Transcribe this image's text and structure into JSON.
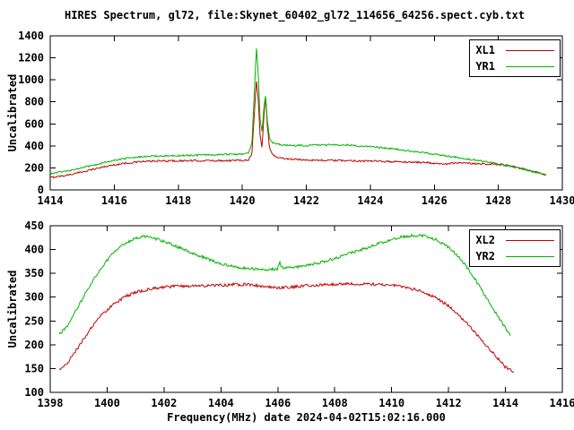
{
  "title": "HIRES Spectrum, gl72, file:Skynet_60402_gl72_114656_64256.spect.cyb.txt",
  "background_color": "#ffffff",
  "axis_color": "#000000",
  "chart_data": [
    {
      "type": "line",
      "title": "",
      "ylabel": "Uncalibrated",
      "xlim": [
        1414,
        1430
      ],
      "ylim": [
        0,
        1400
      ],
      "xticks": [
        1414,
        1416,
        1418,
        1420,
        1422,
        1424,
        1426,
        1428,
        1430
      ],
      "yticks": [
        0,
        200,
        400,
        600,
        800,
        1000,
        1200,
        1400
      ],
      "grid": false,
      "legend_position": "top-right",
      "series": [
        {
          "name": "XL1",
          "color": "#c00000",
          "noise": 8,
          "points": [
            [
              1414.0,
              112
            ],
            [
              1414.4,
              128
            ],
            [
              1414.8,
              150
            ],
            [
              1415.2,
              178
            ],
            [
              1415.6,
              205
            ],
            [
              1416.0,
              228
            ],
            [
              1416.4,
              245
            ],
            [
              1416.8,
              256
            ],
            [
              1417.2,
              261
            ],
            [
              1417.6,
              263
            ],
            [
              1418.0,
              264
            ],
            [
              1418.5,
              265
            ],
            [
              1419.0,
              266
            ],
            [
              1419.5,
              267
            ],
            [
              1420.0,
              269
            ],
            [
              1420.2,
              274
            ],
            [
              1420.3,
              330
            ],
            [
              1420.38,
              700
            ],
            [
              1420.44,
              1000
            ],
            [
              1420.5,
              820
            ],
            [
              1420.56,
              480
            ],
            [
              1420.62,
              380
            ],
            [
              1420.68,
              700
            ],
            [
              1420.73,
              850
            ],
            [
              1420.78,
              600
            ],
            [
              1420.85,
              380
            ],
            [
              1420.95,
              320
            ],
            [
              1421.1,
              295
            ],
            [
              1421.4,
              282
            ],
            [
              1421.8,
              275
            ],
            [
              1422.3,
              270
            ],
            [
              1422.8,
              268
            ],
            [
              1423.3,
              266
            ],
            [
              1423.8,
              263
            ],
            [
              1424.3,
              260
            ],
            [
              1424.8,
              256
            ],
            [
              1425.3,
              252
            ],
            [
              1425.8,
              249
            ],
            [
              1426.1,
              240
            ],
            [
              1426.3,
              232
            ],
            [
              1426.5,
              242
            ],
            [
              1426.9,
              243
            ],
            [
              1427.3,
              240
            ],
            [
              1427.7,
              236
            ],
            [
              1428.1,
              228
            ],
            [
              1428.5,
              210
            ],
            [
              1428.9,
              182
            ],
            [
              1429.2,
              158
            ],
            [
              1429.5,
              138
            ]
          ]
        },
        {
          "name": "YR1",
          "color": "#00b400",
          "noise": 8,
          "points": [
            [
              1414.0,
              148
            ],
            [
              1414.4,
              165
            ],
            [
              1414.8,
              188
            ],
            [
              1415.2,
              215
            ],
            [
              1415.6,
              243
            ],
            [
              1416.0,
              268
            ],
            [
              1416.4,
              288
            ],
            [
              1416.8,
              300
            ],
            [
              1417.2,
              306
            ],
            [
              1417.6,
              309
            ],
            [
              1418.0,
              312
            ],
            [
              1418.5,
              315
            ],
            [
              1419.0,
              318
            ],
            [
              1419.5,
              322
            ],
            [
              1420.0,
              328
            ],
            [
              1420.2,
              338
            ],
            [
              1420.3,
              420
            ],
            [
              1420.38,
              900
            ],
            [
              1420.44,
              1300
            ],
            [
              1420.5,
              1050
            ],
            [
              1420.56,
              620
            ],
            [
              1420.62,
              520
            ],
            [
              1420.68,
              760
            ],
            [
              1420.73,
              865
            ],
            [
              1420.78,
              640
            ],
            [
              1420.85,
              470
            ],
            [
              1420.95,
              430
            ],
            [
              1421.1,
              415
            ],
            [
              1421.4,
              405
            ],
            [
              1421.8,
              404
            ],
            [
              1422.3,
              407
            ],
            [
              1422.8,
              410
            ],
            [
              1423.3,
              408
            ],
            [
              1423.8,
              398
            ],
            [
              1424.3,
              385
            ],
            [
              1424.8,
              370
            ],
            [
              1425.3,
              352
            ],
            [
              1425.8,
              333
            ],
            [
              1426.3,
              312
            ],
            [
              1426.8,
              292
            ],
            [
              1427.3,
              270
            ],
            [
              1427.7,
              252
            ],
            [
              1428.1,
              232
            ],
            [
              1428.5,
              208
            ],
            [
              1428.9,
              180
            ],
            [
              1429.2,
              158
            ],
            [
              1429.5,
              135
            ]
          ]
        }
      ]
    },
    {
      "type": "line",
      "title": "",
      "ylabel": "Uncalibrated",
      "xlabel": "Frequency(MHz) date 2024-04-02T15:02:16.000",
      "xlim": [
        1398,
        1416
      ],
      "ylim": [
        100,
        450
      ],
      "xticks": [
        1398,
        1400,
        1402,
        1404,
        1406,
        1408,
        1410,
        1412,
        1414,
        1416
      ],
      "yticks": [
        100,
        150,
        200,
        250,
        300,
        350,
        400,
        450
      ],
      "grid": false,
      "legend_position": "top-right",
      "series": [
        {
          "name": "XL2",
          "color": "#c00000",
          "noise": 3,
          "points": [
            [
              1398.3,
              146
            ],
            [
              1398.6,
              162
            ],
            [
              1399.0,
              196
            ],
            [
              1399.4,
              232
            ],
            [
              1399.8,
              262
            ],
            [
              1400.2,
              284
            ],
            [
              1400.6,
              300
            ],
            [
              1401.0,
              310
            ],
            [
              1401.5,
              317
            ],
            [
              1402.0,
              321
            ],
            [
              1402.5,
              323
            ],
            [
              1403.0,
              324
            ],
            [
              1403.5,
              324
            ],
            [
              1404.0,
              325
            ],
            [
              1404.5,
              327
            ],
            [
              1405.0,
              326
            ],
            [
              1405.3,
              324
            ],
            [
              1405.7,
              321
            ],
            [
              1406.0,
              320
            ],
            [
              1406.4,
              321
            ],
            [
              1406.8,
              323
            ],
            [
              1407.2,
              325
            ],
            [
              1407.6,
              326
            ],
            [
              1408.0,
              327
            ],
            [
              1408.5,
              328
            ],
            [
              1409.0,
              328
            ],
            [
              1409.5,
              327
            ],
            [
              1410.0,
              325
            ],
            [
              1410.5,
              321
            ],
            [
              1411.0,
              313
            ],
            [
              1411.5,
              301
            ],
            [
              1412.0,
              282
            ],
            [
              1412.4,
              260
            ],
            [
              1412.8,
              235
            ],
            [
              1413.2,
              208
            ],
            [
              1413.6,
              180
            ],
            [
              1414.0,
              153
            ],
            [
              1414.3,
              144
            ]
          ]
        },
        {
          "name": "YR2",
          "color": "#00b400",
          "noise": 3,
          "points": [
            [
              1398.3,
              221
            ],
            [
              1398.6,
              240
            ],
            [
              1399.0,
              282
            ],
            [
              1399.4,
              325
            ],
            [
              1399.8,
              362
            ],
            [
              1400.2,
              392
            ],
            [
              1400.6,
              412
            ],
            [
              1401.0,
              424
            ],
            [
              1401.3,
              427
            ],
            [
              1401.6,
              425
            ],
            [
              1402.0,
              417
            ],
            [
              1402.5,
              405
            ],
            [
              1403.0,
              393
            ],
            [
              1403.5,
              381
            ],
            [
              1404.0,
              370
            ],
            [
              1404.5,
              363
            ],
            [
              1405.0,
              360
            ],
            [
              1405.5,
              358
            ],
            [
              1405.9,
              359
            ],
            [
              1406.0,
              360
            ],
            [
              1406.05,
              374
            ],
            [
              1406.15,
              361
            ],
            [
              1406.6,
              363
            ],
            [
              1407.0,
              367
            ],
            [
              1407.5,
              373
            ],
            [
              1408.0,
              381
            ],
            [
              1408.5,
              391
            ],
            [
              1409.0,
              401
            ],
            [
              1409.5,
              412
            ],
            [
              1410.0,
              421
            ],
            [
              1410.4,
              427
            ],
            [
              1410.8,
              430
            ],
            [
              1411.2,
              428
            ],
            [
              1411.6,
              420
            ],
            [
              1412.0,
              405
            ],
            [
              1412.4,
              382
            ],
            [
              1412.8,
              350
            ],
            [
              1413.2,
              312
            ],
            [
              1413.6,
              272
            ],
            [
              1414.0,
              235
            ],
            [
              1414.2,
              217
            ]
          ]
        }
      ]
    }
  ]
}
